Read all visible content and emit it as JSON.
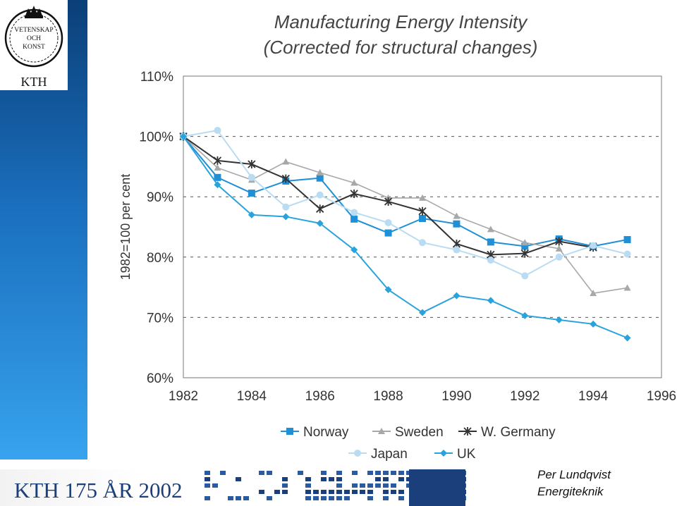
{
  "branding": {
    "logo_lines": [
      "VETENSKAP",
      "OCH",
      "KONST"
    ],
    "logo_name": "KTH",
    "footer_text": "KTH 175 ÅR 2002",
    "author_name": "Per Lundqvist",
    "author_dept": "Energiteknik"
  },
  "colors": {
    "sidebar_top": "#0b3f78",
    "sidebar_bottom": "#37a3ee",
    "norway": "#1f8fd6",
    "sweden": "#a8a8a8",
    "germany": "#333333",
    "japan": "#b9dcf2",
    "uk": "#29a3db"
  },
  "chart_data": {
    "type": "line",
    "title": "Manufacturing Energy Intensity",
    "subtitle": "(Corrected for structural changes)",
    "ylabel": "1982=100 per cent",
    "xlabel": "",
    "xlim": [
      1982,
      1996
    ],
    "ylim": [
      60,
      110
    ],
    "x_ticks": [
      "1982",
      "1984",
      "1986",
      "1988",
      "1990",
      "1992",
      "1994",
      "1996"
    ],
    "y_ticks": [
      "60%",
      "70%",
      "80%",
      "90%",
      "100%",
      "110%"
    ],
    "grid": "horizontal dashed",
    "legend_position": "bottom",
    "x": [
      1982,
      1983,
      1984,
      1985,
      1986,
      1987,
      1988,
      1989,
      1990,
      1991,
      1992,
      1993,
      1994,
      1995
    ],
    "series": [
      {
        "name": "Norway",
        "marker": "square",
        "values": [
          100,
          93.2,
          90.6,
          92.6,
          93.1,
          86.3,
          84,
          86.4,
          85.5,
          82.5,
          81.8,
          83,
          81.8,
          82.9
        ]
      },
      {
        "name": "Sweden",
        "marker": "triangle",
        "values": [
          100,
          94.8,
          92.8,
          95.8,
          94,
          92.3,
          89.8,
          89.8,
          86.8,
          84.6,
          82.4,
          81.4,
          74,
          74.9
        ]
      },
      {
        "name": "W. Germany",
        "marker": "star",
        "values": [
          100,
          96,
          95.4,
          93,
          88,
          90.5,
          89.2,
          87.6,
          82.2,
          80.4,
          80.6,
          82.6,
          81.6,
          null
        ]
      },
      {
        "name": "Japan",
        "marker": "circle",
        "values": [
          100,
          101,
          93.2,
          88.3,
          90.3,
          87.4,
          85.7,
          82.4,
          81.2,
          79.5,
          76.9,
          80,
          81.9,
          80.5
        ]
      },
      {
        "name": "UK",
        "marker": "diamond",
        "values": [
          100,
          92,
          87,
          86.7,
          85.6,
          81.2,
          74.6,
          70.8,
          73.6,
          72.8,
          70.3,
          69.6,
          68.9,
          66.6
        ]
      }
    ]
  }
}
